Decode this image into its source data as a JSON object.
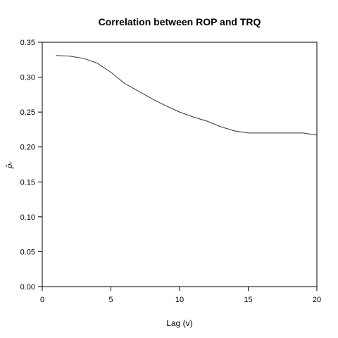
{
  "chart_data": {
    "type": "line",
    "title": "Correlation between ROP and TRQ",
    "xlabel": "Lag (v)",
    "ylabel": "ρ̂ᵥ",
    "xlim": [
      0,
      20
    ],
    "ylim": [
      0,
      0.35
    ],
    "x_ticks": [
      0,
      5,
      10,
      15,
      20
    ],
    "y_ticks": [
      0.0,
      0.05,
      0.1,
      0.15,
      0.2,
      0.25,
      0.3,
      0.35
    ],
    "x_tick_labels": [
      "0",
      "5",
      "10",
      "15",
      "20"
    ],
    "y_tick_labels": [
      "0.00",
      "0.05",
      "0.10",
      "0.15",
      "0.20",
      "0.25",
      "0.30",
      "0.35"
    ],
    "grid": false,
    "series": [
      {
        "x": [
          1,
          2,
          3,
          4,
          5,
          6,
          7,
          8,
          9,
          10,
          11,
          12,
          13,
          14,
          15,
          16,
          17,
          18,
          19,
          20
        ],
        "values": [
          0.331,
          0.33,
          0.327,
          0.32,
          0.307,
          0.291,
          0.28,
          0.269,
          0.259,
          0.25,
          0.243,
          0.237,
          0.229,
          0.223,
          0.22,
          0.22,
          0.22,
          0.22,
          0.22,
          0.217
        ],
        "color": "#333333"
      }
    ]
  }
}
